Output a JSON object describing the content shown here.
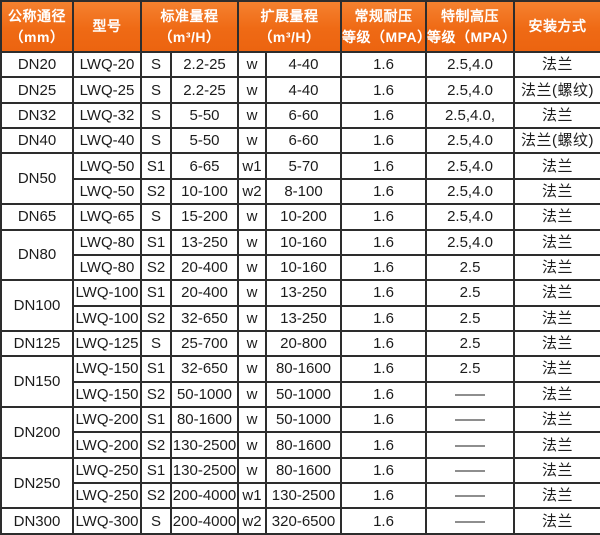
{
  "table": {
    "headers": [
      {
        "line1": "公称通径",
        "line2": "（mm）"
      },
      {
        "line1": "型号",
        "line2": ""
      },
      {
        "line1": "标准量程",
        "line2": "（m³/H）"
      },
      {
        "line1": "扩展量程",
        "line2": "（m³/H）"
      },
      {
        "line1": "常规耐压",
        "line2": "等级（MPA）"
      },
      {
        "line1": "特制高压",
        "line2": "等级（MPA）"
      },
      {
        "line1": "安装方式",
        "line2": ""
      }
    ],
    "rows": [
      {
        "dn": "DN20",
        "dn_span": 1,
        "model": "LWQ-20",
        "s": "S",
        "std": "2.2-25",
        "w": "w",
        "ext": "4-40",
        "pn": "1.6",
        "hp": "2.5,4.0",
        "mount": "法兰"
      },
      {
        "dn": "DN25",
        "dn_span": 1,
        "model": "LWQ-25",
        "s": "S",
        "std": "2.2-25",
        "w": "w",
        "ext": "4-40",
        "pn": "1.6",
        "hp": "2.5,4.0",
        "mount": "法兰(螺纹)"
      },
      {
        "dn": "DN32",
        "dn_span": 1,
        "model": "LWQ-32",
        "s": "S",
        "std": "5-50",
        "w": "w",
        "ext": "6-60",
        "pn": "1.6",
        "hp": "2.5,4.0,",
        "mount": "法兰"
      },
      {
        "dn": "DN40",
        "dn_span": 1,
        "model": "LWQ-40",
        "s": "S",
        "std": "5-50",
        "w": "w",
        "ext": "6-60",
        "pn": "1.6",
        "hp": "2.5,4.0",
        "mount": "法兰(螺纹)"
      },
      {
        "dn": "DN50",
        "dn_span": 2,
        "model": "LWQ-50",
        "s": "S1",
        "std": "6-65",
        "w": "w1",
        "ext": "5-70",
        "pn": "1.6",
        "hp": "2.5,4.0",
        "mount": "法兰"
      },
      {
        "dn": null,
        "model": "LWQ-50",
        "s": "S2",
        "std": "10-100",
        "w": "w2",
        "ext": "8-100",
        "pn": "1.6",
        "hp": "2.5,4.0",
        "mount": "法兰"
      },
      {
        "dn": "DN65",
        "dn_span": 1,
        "model": "LWQ-65",
        "s": "S",
        "std": "15-200",
        "w": "w",
        "ext": "10-200",
        "pn": "1.6",
        "hp": "2.5,4.0",
        "mount": "法兰"
      },
      {
        "dn": "DN80",
        "dn_span": 2,
        "model": "LWQ-80",
        "s": "S1",
        "std": "13-250",
        "w": "w",
        "ext": "10-160",
        "pn": "1.6",
        "hp": "2.5,4.0",
        "mount": "法兰"
      },
      {
        "dn": null,
        "model": "LWQ-80",
        "s": "S2",
        "std": "20-400",
        "w": "w",
        "ext": "10-160",
        "pn": "1.6",
        "hp": "2.5",
        "mount": "法兰"
      },
      {
        "dn": "DN100",
        "dn_span": 2,
        "model": "LWQ-100",
        "s": "S1",
        "std": "20-400",
        "w": "w",
        "ext": "13-250",
        "pn": "1.6",
        "hp": "2.5",
        "mount": "法兰"
      },
      {
        "dn": null,
        "model": "LWQ-100",
        "s": "S2",
        "std": "32-650",
        "w": "w",
        "ext": "13-250",
        "pn": "1.6",
        "hp": "2.5",
        "mount": "法兰"
      },
      {
        "dn": "DN125",
        "dn_span": 1,
        "model": "LWQ-125",
        "s": "S",
        "std": "25-700",
        "w": "w",
        "ext": "20-800",
        "pn": "1.6",
        "hp": "2.5",
        "mount": "法兰"
      },
      {
        "dn": "DN150",
        "dn_span": 2,
        "model": "LWQ-150",
        "s": "S1",
        "std": "32-650",
        "w": "w",
        "ext": "80-1600",
        "pn": "1.6",
        "hp": "2.5",
        "mount": "法兰"
      },
      {
        "dn": null,
        "model": "LWQ-150",
        "s": "S2",
        "std": "50-1000",
        "w": "w",
        "ext": "50-1000",
        "pn": "1.6",
        "hp": "——",
        "mount": "法兰"
      },
      {
        "dn": "DN200",
        "dn_span": 2,
        "model": "LWQ-200",
        "s": "S1",
        "std": "80-1600",
        "w": "w",
        "ext": "50-1000",
        "pn": "1.6",
        "hp": "——",
        "mount": "法兰"
      },
      {
        "dn": null,
        "model": "LWQ-200",
        "s": "S2",
        "std": "130-2500",
        "w": "w",
        "ext": "80-1600",
        "pn": "1.6",
        "hp": "——",
        "mount": "法兰"
      },
      {
        "dn": "DN250",
        "dn_span": 2,
        "model": "LWQ-250",
        "s": "S1",
        "std": "130-2500",
        "w": "w",
        "ext": "80-1600",
        "pn": "1.6",
        "hp": "——",
        "mount": "法兰"
      },
      {
        "dn": null,
        "model": "LWQ-250",
        "s": "S2",
        "std": "200-4000",
        "w": "w1",
        "ext": "130-2500",
        "pn": "1.6",
        "hp": "——",
        "mount": "法兰"
      },
      {
        "dn": "DN300",
        "dn_span": 1,
        "model": "LWQ-300",
        "s": "S",
        "std": "200-4000",
        "w": "w2",
        "ext": "320-6500",
        "pn": "1.6",
        "hp": "——",
        "mount": "法兰"
      }
    ],
    "colors": {
      "header_bg": "#ef6a15",
      "header_text": "#ffffff",
      "border": "#2d2d2d",
      "body_text": "#1c1c1c",
      "body_bg": "#ffffff"
    }
  }
}
